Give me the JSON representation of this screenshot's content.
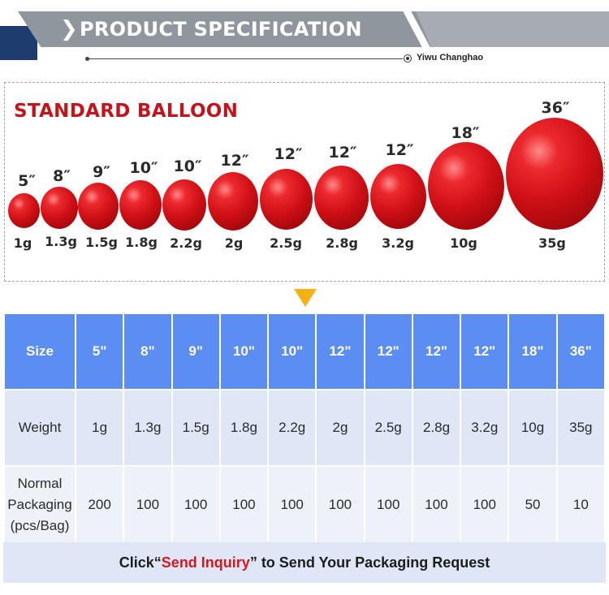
{
  "header": {
    "title": "PRODUCT SPECIFICATION",
    "brand": "Yiwu Changhao",
    "colors": {
      "navy": "#1f3c6e",
      "gray": "#8f969d"
    }
  },
  "balloon_panel": {
    "title": "STANDARD BALLOON",
    "balloons": [
      {
        "size": "5″",
        "weight": "1g"
      },
      {
        "size": "8″",
        "weight": "1.3g"
      },
      {
        "size": "9″",
        "weight": "1.5g"
      },
      {
        "size": "10″",
        "weight": "1.8g"
      },
      {
        "size": "10″",
        "weight": "2.2g"
      },
      {
        "size": "12″",
        "weight": "2g"
      },
      {
        "size": "12″",
        "weight": "2.5g"
      },
      {
        "size": "12″",
        "weight": "2.8g"
      },
      {
        "size": "12″",
        "weight": "3.2g"
      },
      {
        "size": "18″",
        "weight": "10g"
      },
      {
        "size": "36″",
        "weight": "35g"
      }
    ],
    "balloon_color": "#cf1016"
  },
  "table": {
    "row_labels": {
      "size": "Size",
      "weight": "Weight",
      "packaging_1": "Normal",
      "packaging_2": "Packaging",
      "packaging_3": "(pcs/Bag)"
    },
    "sizes": [
      "5\"",
      "8\"",
      "9\"",
      "10\"",
      "10\"",
      "12\"",
      "12\"",
      "12\"",
      "12\"",
      "18\"",
      "36\""
    ],
    "weights": [
      "1g",
      "1.3g",
      "1.5g",
      "1.8g",
      "2.2g",
      "2g",
      "2.5g",
      "2.8g",
      "3.2g",
      "10g",
      "35g"
    ],
    "packaging": [
      "200",
      "100",
      "100",
      "100",
      "100",
      "100",
      "100",
      "100",
      "100",
      "50",
      "10"
    ],
    "header_color": "#5b8ef0"
  },
  "footer": {
    "prefix": "Click“",
    "link": "Send Inquiry",
    "suffix": "” to Send Your Packaging Request"
  }
}
